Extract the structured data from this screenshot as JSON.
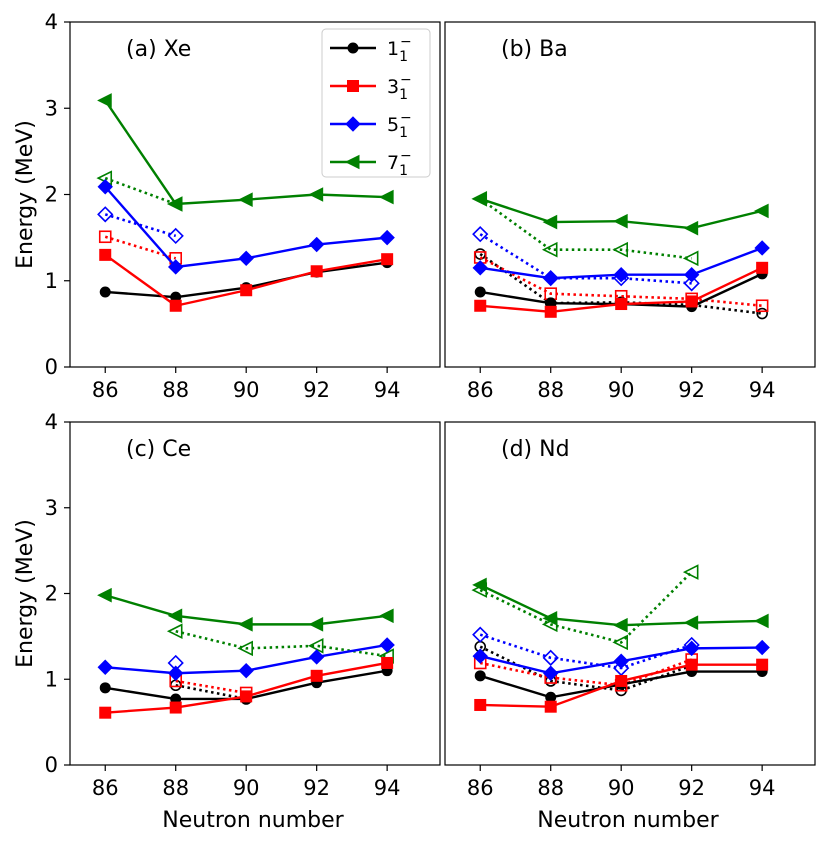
{
  "chart_data": {
    "type": "line",
    "ylabel": "Energy (MeV)",
    "xlabel": "Neutron number",
    "x": [
      86,
      88,
      90,
      92,
      94
    ],
    "xticks": [
      "86",
      "88",
      "90",
      "92",
      "94"
    ],
    "yticks": [
      "0",
      "1",
      "2",
      "3",
      "4"
    ],
    "xlim": [
      85,
      95.5
    ],
    "ylim": [
      0,
      4
    ],
    "legend": {
      "placement": "top-right of panel (a)",
      "entries": [
        {
          "base": "1",
          "sub": "1",
          "sup": "−",
          "color": "#000000",
          "marker": "circle"
        },
        {
          "base": "3",
          "sub": "1",
          "sup": "−",
          "color": "#ff0000",
          "marker": "square"
        },
        {
          "base": "5",
          "sub": "1",
          "sup": "−",
          "color": "#0000ff",
          "marker": "diamond"
        },
        {
          "base": "7",
          "sub": "1",
          "sup": "−",
          "color": "#008000",
          "marker": "triangle-left"
        }
      ]
    },
    "panels": [
      {
        "title": "(a) Xe",
        "solid": [
          {
            "name": "1_1^-",
            "values": [
              0.87,
              0.81,
              0.92,
              1.1,
              1.21
            ]
          },
          {
            "name": "3_1^-",
            "values": [
              1.3,
              0.71,
              0.89,
              1.11,
              1.25
            ]
          },
          {
            "name": "5_1^-",
            "values": [
              2.09,
              1.16,
              1.26,
              1.42,
              1.5
            ]
          },
          {
            "name": "7_1^-",
            "values": [
              3.09,
              1.89,
              1.94,
              2.0,
              1.97
            ]
          }
        ],
        "dotted": [
          {
            "name": "1_1^-",
            "values": [
              null,
              null,
              null,
              null,
              null
            ]
          },
          {
            "name": "3_1^-",
            "values": [
              1.51,
              1.26,
              null,
              null,
              null
            ]
          },
          {
            "name": "5_1^-",
            "values": [
              1.77,
              1.52,
              null,
              null,
              null
            ]
          },
          {
            "name": "7_1^-",
            "values": [
              2.19,
              1.89,
              null,
              null,
              null
            ]
          }
        ]
      },
      {
        "title": "(b) Ba",
        "solid": [
          {
            "name": "1_1^-",
            "values": [
              0.87,
              0.74,
              0.73,
              0.7,
              1.08
            ]
          },
          {
            "name": "3_1^-",
            "values": [
              0.71,
              0.64,
              0.73,
              0.76,
              1.15
            ]
          },
          {
            "name": "5_1^-",
            "values": [
              1.15,
              1.03,
              1.07,
              1.07,
              1.38
            ]
          },
          {
            "name": "7_1^-",
            "values": [
              1.95,
              1.68,
              1.69,
              1.61,
              1.81
            ]
          }
        ],
        "dotted": [
          {
            "name": "1_1^-",
            "values": [
              1.31,
              0.74,
              0.75,
              0.72,
              0.62
            ]
          },
          {
            "name": "3_1^-",
            "values": [
              1.27,
              0.85,
              0.82,
              0.79,
              0.71
            ]
          },
          {
            "name": "5_1^-",
            "values": [
              1.54,
              1.03,
              1.03,
              0.97,
              null
            ]
          },
          {
            "name": "7_1^-",
            "values": [
              1.95,
              1.36,
              1.36,
              1.26,
              null
            ]
          }
        ]
      },
      {
        "title": "(c) Ce",
        "solid": [
          {
            "name": "1_1^-",
            "values": [
              0.9,
              0.77,
              0.77,
              0.96,
              1.1
            ]
          },
          {
            "name": "3_1^-",
            "values": [
              0.61,
              0.67,
              0.8,
              1.04,
              1.19
            ]
          },
          {
            "name": "5_1^-",
            "values": [
              1.14,
              1.07,
              1.1,
              1.26,
              1.4
            ]
          },
          {
            "name": "7_1^-",
            "values": [
              1.98,
              1.74,
              1.64,
              1.64,
              1.74
            ]
          }
        ],
        "dotted": [
          {
            "name": "1_1^-",
            "values": [
              null,
              0.93,
              0.77,
              null,
              null
            ]
          },
          {
            "name": "3_1^-",
            "values": [
              null,
              0.98,
              0.84,
              null,
              null
            ]
          },
          {
            "name": "5_1^-",
            "values": [
              null,
              1.19,
              null,
              null,
              null
            ]
          },
          {
            "name": "7_1^-",
            "values": [
              null,
              1.56,
              1.36,
              1.39,
              1.27
            ]
          }
        ]
      },
      {
        "title": "(d) Nd",
        "solid": [
          {
            "name": "1_1^-",
            "values": [
              1.04,
              0.79,
              0.94,
              1.09,
              1.09
            ]
          },
          {
            "name": "3_1^-",
            "values": [
              0.7,
              0.68,
              0.98,
              1.17,
              1.17
            ]
          },
          {
            "name": "5_1^-",
            "values": [
              1.27,
              1.07,
              1.21,
              1.36,
              1.37
            ]
          },
          {
            "name": "7_1^-",
            "values": [
              2.1,
              1.71,
              1.63,
              1.66,
              1.68
            ]
          }
        ],
        "dotted": [
          {
            "name": "1_1^-",
            "values": [
              1.38,
              0.98,
              0.87,
              1.16,
              null
            ]
          },
          {
            "name": "3_1^-",
            "values": [
              1.19,
              1.02,
              0.93,
              1.23,
              null
            ]
          },
          {
            "name": "5_1^-",
            "values": [
              1.52,
              1.25,
              1.13,
              1.4,
              null
            ]
          },
          {
            "name": "7_1^-",
            "values": [
              2.04,
              1.64,
              1.43,
              2.25,
              null
            ]
          }
        ]
      }
    ]
  }
}
